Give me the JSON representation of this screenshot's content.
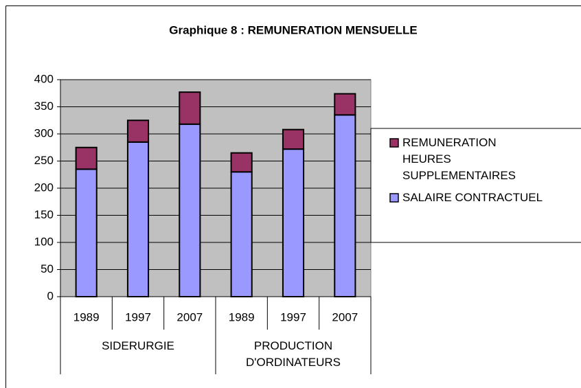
{
  "chart_data": {
    "type": "stacked_bar",
    "title": "Graphique 8 : REMUNERATION MENSUELLE",
    "groups": [
      {
        "name": "SIDERURGIE",
        "categories": [
          "1989",
          "1997",
          "2007"
        ]
      },
      {
        "name": "PRODUCTION D'ORDINATEURS",
        "categories": [
          "1989",
          "1997",
          "2007"
        ]
      }
    ],
    "series": [
      {
        "name": "SALAIRE CONTRACTUEL",
        "color": "#9999ff",
        "values": [
          235,
          285,
          318,
          230,
          272,
          335
        ]
      },
      {
        "name": "REMUNERATION HEURES SUPPLEMENTAIRES",
        "color": "#993366",
        "values": [
          40,
          40,
          59,
          35,
          36,
          39
        ]
      }
    ],
    "ylim": [
      0,
      400
    ],
    "yticks": [
      0,
      50,
      100,
      150,
      200,
      250,
      300,
      350,
      400
    ],
    "grid": true,
    "legend": "right"
  }
}
